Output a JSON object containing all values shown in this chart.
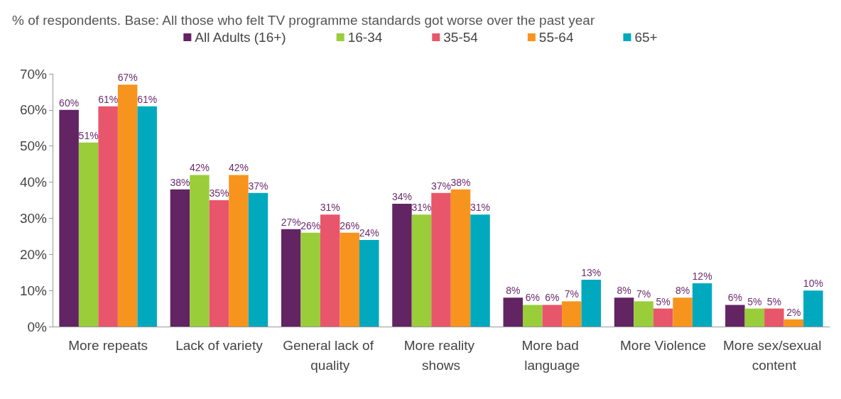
{
  "chart_data": {
    "type": "bar",
    "title": "% of respondents. Base: All those who felt TV programme standards got worse over the past year",
    "categories": [
      "More repeats",
      "Lack of variety",
      "General lack of quality",
      "More reality shows",
      "More bad language",
      "More Violence",
      "More sex/sexual content"
    ],
    "series": [
      {
        "name": "All Adults (16+)",
        "color": "#632463",
        "values": [
          60,
          38,
          27,
          34,
          8,
          8,
          6
        ],
        "value_labels": [
          "60%",
          "38%",
          "27%",
          "34%",
          "8%",
          "8%",
          "6%"
        ]
      },
      {
        "name": "16-34",
        "color": "#9acd3a",
        "values": [
          51,
          42,
          26,
          31,
          6,
          7,
          5
        ],
        "value_labels": [
          "51%",
          "42%",
          "26%",
          "31%",
          "6%",
          "7%",
          "5%"
        ]
      },
      {
        "name": "35-54",
        "color": "#e8566b",
        "values": [
          61,
          35,
          31,
          37,
          6,
          5,
          5
        ],
        "value_labels": [
          "61%",
          "35%",
          "31%",
          "37%",
          "6%",
          "5%",
          "5%"
        ]
      },
      {
        "name": "55-64",
        "color": "#f7941e",
        "values": [
          67,
          42,
          26,
          38,
          7,
          8,
          2
        ],
        "value_labels": [
          "67%",
          "42%",
          "26%",
          "38%",
          "7%",
          "8%",
          "2%"
        ]
      },
      {
        "name": "65+",
        "color": "#00a9be",
        "values": [
          61,
          37,
          24,
          31,
          13,
          12,
          10
        ],
        "value_labels": [
          "61%",
          "37%",
          "24%",
          "31%",
          "13%",
          "12%",
          "10%"
        ]
      }
    ],
    "ylim": [
      0,
      70
    ],
    "yticks": [
      {
        "value": 0,
        "label": "0%"
      },
      {
        "value": 10,
        "label": "10%"
      },
      {
        "value": 20,
        "label": "20%"
      },
      {
        "value": 30,
        "label": "30%"
      },
      {
        "value": 40,
        "label": "40%"
      },
      {
        "value": 50,
        "label": "50%"
      },
      {
        "value": 60,
        "label": "60%"
      },
      {
        "value": 70,
        "label": "70%"
      }
    ],
    "grid": false,
    "legend": "top"
  }
}
